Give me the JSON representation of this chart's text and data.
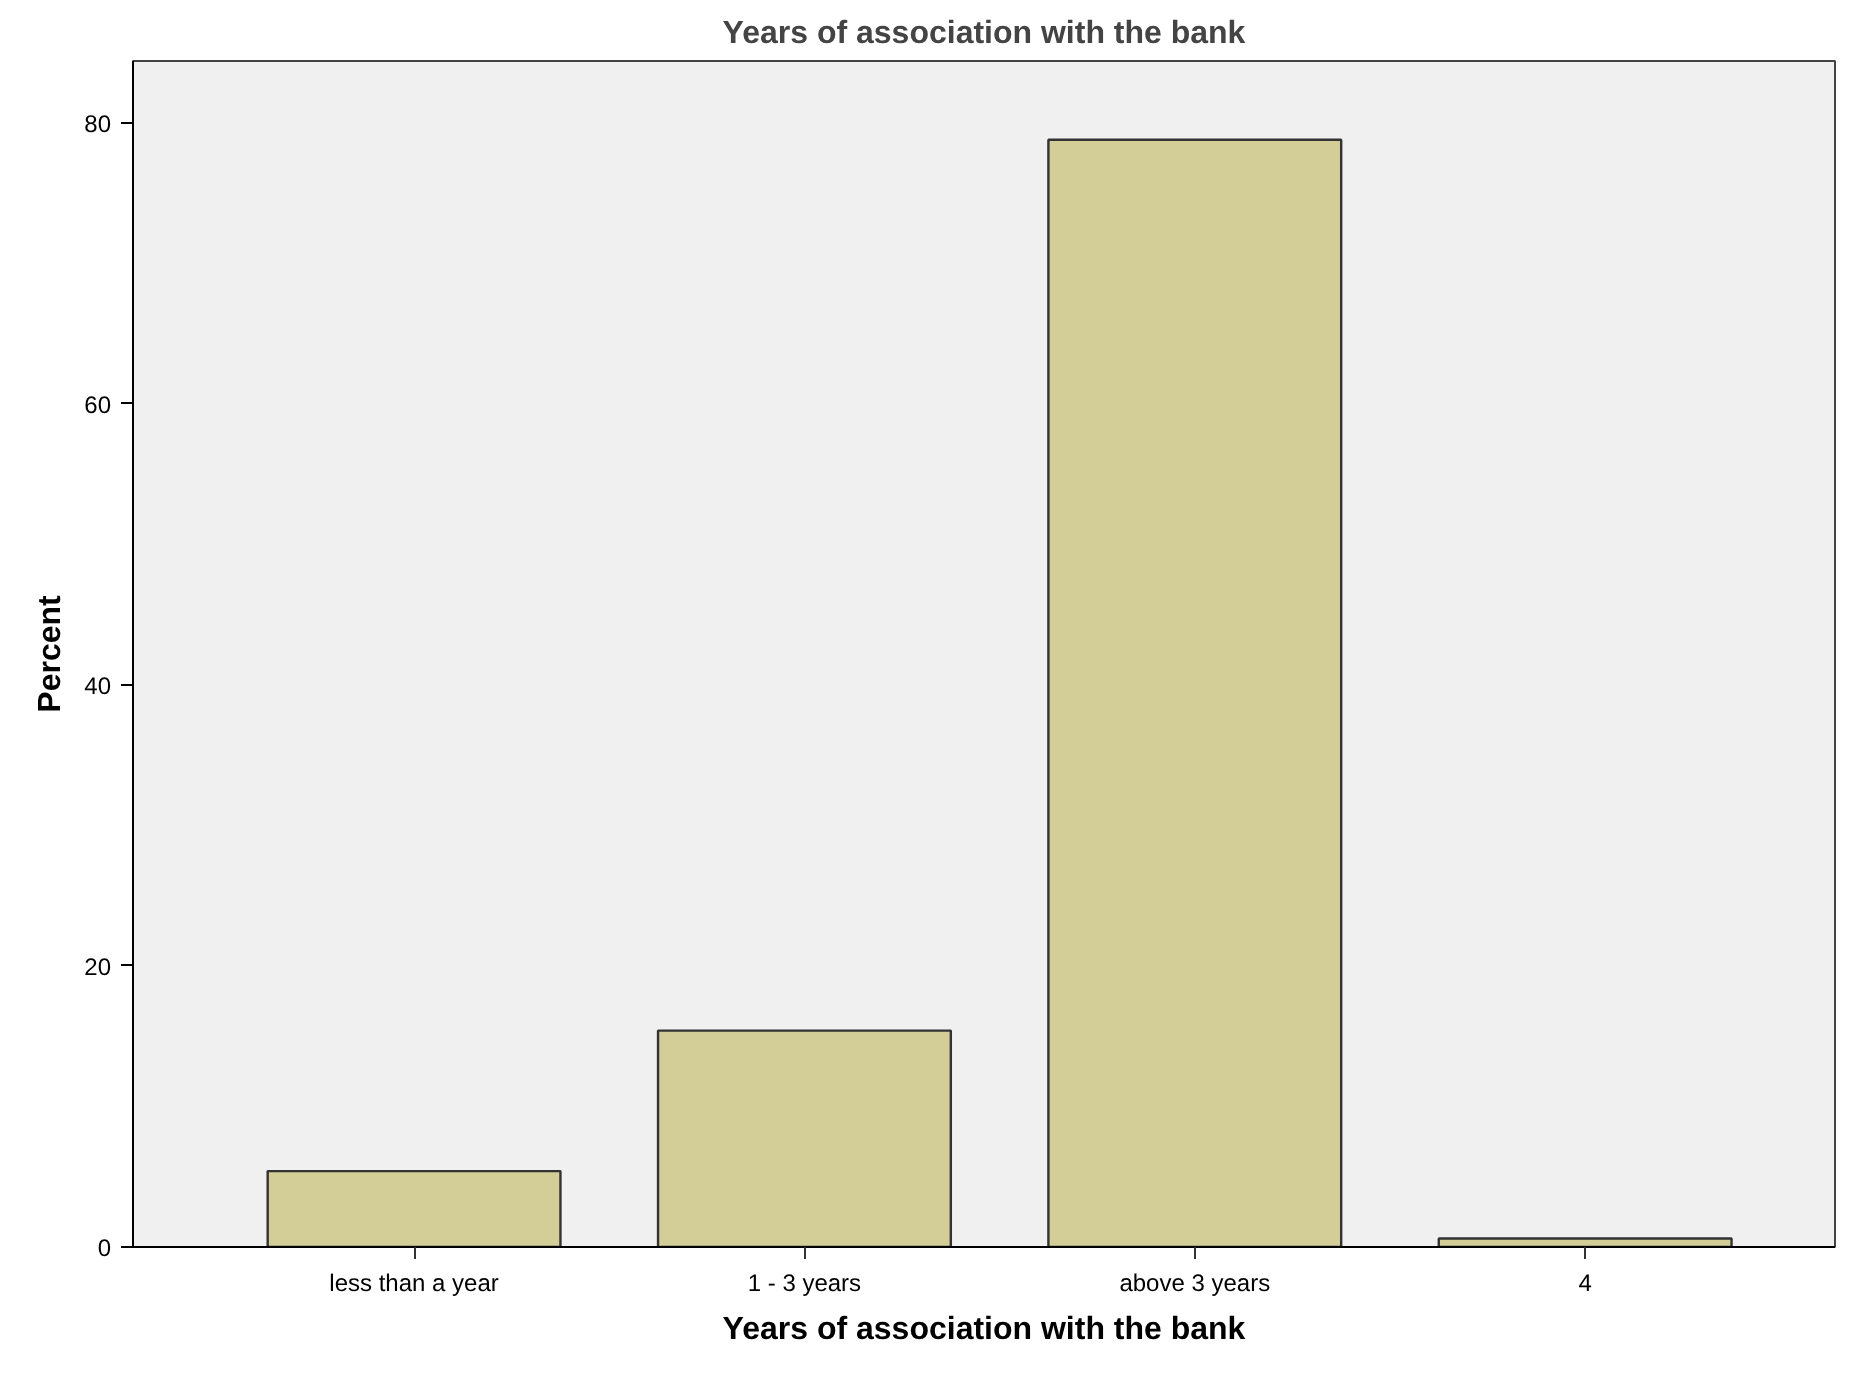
{
  "chart_data": {
    "type": "bar",
    "title": "Years of association with the bank",
    "xlabel": "Years of association with the bank",
    "ylabel": "Percent",
    "categories": [
      "less than a year",
      "1 - 3 years",
      "above 3 years",
      "4"
    ],
    "values": [
      5.4,
      15.4,
      78.8,
      0.6
    ],
    "color": "#d3ce97",
    "ylim": [
      0,
      84.4
    ],
    "yticks": [
      0,
      20,
      40,
      60,
      80
    ],
    "grid": false
  }
}
